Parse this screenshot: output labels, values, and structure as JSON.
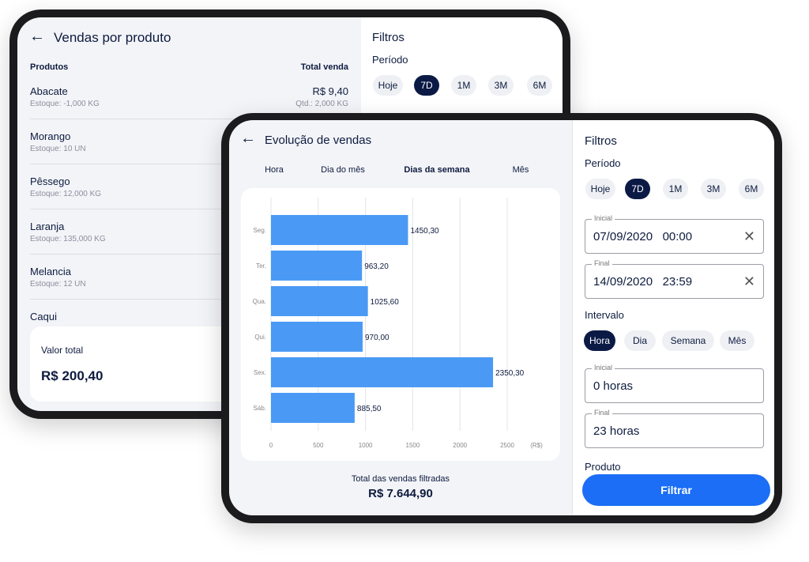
{
  "back_screen": {
    "title": "Vendas por produto",
    "columns": [
      "Produtos",
      "Total venda"
    ],
    "products": [
      {
        "name": "Abacate",
        "stock": "Estoque: -1,000 KG",
        "total": "R$ 9,40",
        "quantity": "Qtd.: 2,000 KG"
      },
      {
        "name": "Morango",
        "stock": "Estoque: 10 UN"
      },
      {
        "name": "Pêssego",
        "stock": "Estoque: 12,000 KG"
      },
      {
        "name": "Laranja",
        "stock": "Estoque: 135,000 KG"
      },
      {
        "name": "Melancia",
        "stock": "Estoque: 12 UN"
      },
      {
        "name": "Caqui"
      }
    ],
    "summary": {
      "label": "Valor total",
      "value": "R$ 200,40"
    },
    "filters": {
      "title": "Filtros",
      "period_label": "Período",
      "periods": [
        "Hoje",
        "7D",
        "1M",
        "3M",
        "6M"
      ],
      "selected_period": 1
    }
  },
  "front_screen": {
    "title": "Evolução de vendas",
    "tabs": [
      "Hora",
      "Dia do mês",
      "Dias da semana",
      "Mês"
    ],
    "selected_tab": 2,
    "chart_data": {
      "type": "bar",
      "orientation": "horizontal",
      "categories": [
        "Seg.",
        "Ter.",
        "Qua.",
        "Qui.",
        "Sex.",
        "Sáb."
      ],
      "values": [
        1450.3,
        963.2,
        1025.6,
        970,
        2350.3,
        885.5
      ],
      "value_labels": [
        "1450,30",
        "963,20",
        "1025,60",
        "970,00",
        "2350,30",
        "885,50"
      ],
      "color": "#4a9af5",
      "xlim": [
        0,
        2500
      ],
      "xticks": [
        0,
        500,
        1000,
        1500,
        2000,
        2500
      ],
      "x_unit": "(R$)",
      "grid": true
    },
    "total_label": "Total das vendas filtradas",
    "total_value": "R$ 7.644,90",
    "filters": {
      "title": "Filtros",
      "period_label": "Período",
      "periods": [
        "Hoje",
        "7D",
        "1M",
        "3M",
        "6M"
      ],
      "selected_period": 1,
      "date_start": {
        "label": "Inicial",
        "value": "07/09/2020   00:00"
      },
      "date_end": {
        "label": "Final",
        "value": "14/09/2020   23:59"
      },
      "interval_label": "Intervalo",
      "intervals": [
        "Hora",
        "Dia",
        "Semana",
        "Mês"
      ],
      "selected_interval": 0,
      "hours_start": {
        "label": "Inicial",
        "value": "0 horas"
      },
      "hours_end": {
        "label": "Final",
        "value": "23 horas"
      },
      "product_label": "Produto",
      "submit": "Filtrar"
    }
  }
}
